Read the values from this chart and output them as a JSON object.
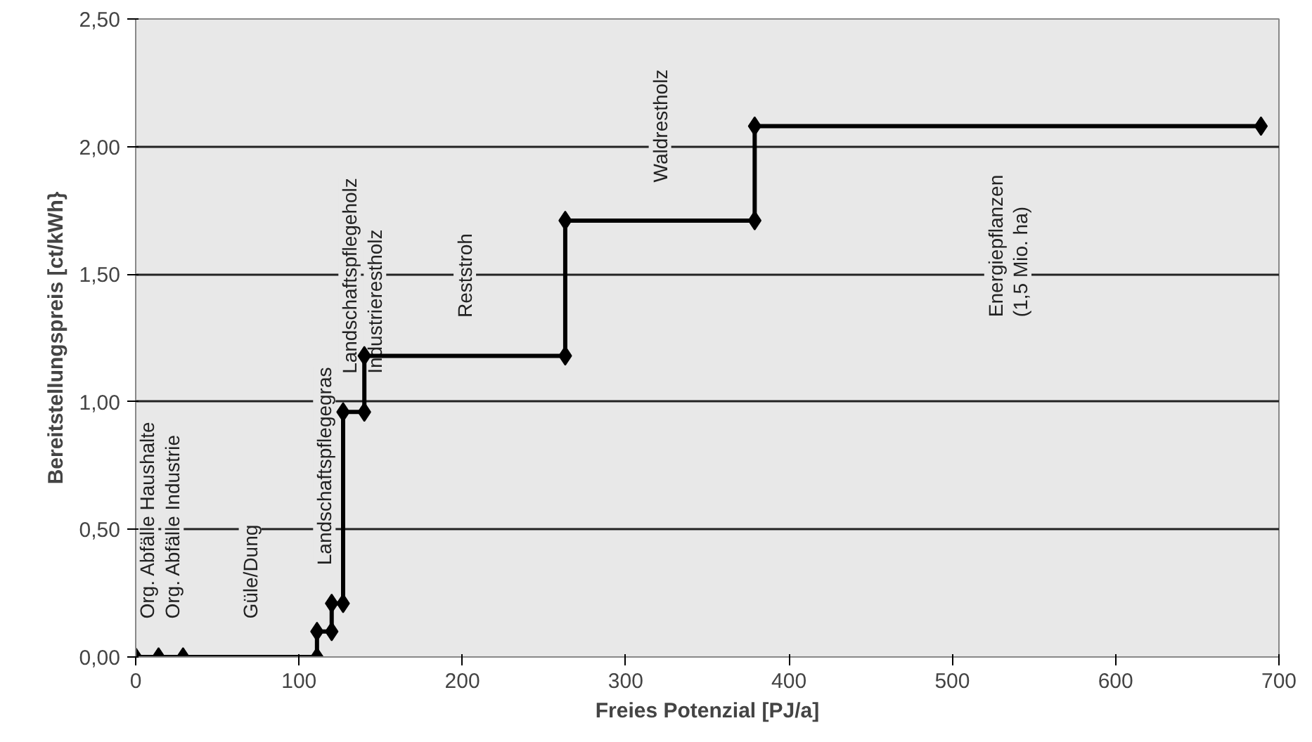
{
  "chart_data": {
    "type": "line",
    "xlabel": "Freies Potenzial [PJ/a]",
    "ylabel": "Bereitstellungspreis [ct/kWh}",
    "x": [
      0,
      14,
      29,
      111,
      111,
      120,
      120,
      127,
      127,
      140,
      140,
      263,
      263,
      379,
      379,
      689
    ],
    "series": [
      {
        "color": "#000000",
        "values": [
          0,
          0,
          0,
          0,
          0.1,
          0.1,
          0.21,
          0.21,
          0.96,
          0.96,
          1.18,
          1.18,
          1.71,
          1.71,
          2.08,
          2.08
        ]
      }
    ],
    "xlim": [
      0,
      700
    ],
    "ylim": [
      0,
      2.5
    ],
    "xticks": [
      0,
      100,
      200,
      300,
      400,
      500,
      600,
      700
    ],
    "yticks": [
      {
        "value": 0,
        "label": "0,00"
      },
      {
        "value": 0.5,
        "label": "0,50"
      },
      {
        "value": 1,
        "label": "1,00"
      },
      {
        "value": 1.5,
        "label": "1,50"
      },
      {
        "value": 2,
        "label": "2,00"
      },
      {
        "value": 2.5,
        "label": "2,50"
      }
    ],
    "grid": "y",
    "marker": "diamond",
    "line_style": "solid",
    "annotations": [
      "Org. Abfälle Haushalte",
      "Org. Abfälle Industrie",
      "Güle/Dung",
      "Landschaftspflegegras",
      "Landschaftspflegeholz",
      "Industrierestholz",
      "Reststroh",
      "Waldrestholz",
      "Energiepflanzen\n(1,5 Mio. ha)"
    ]
  }
}
